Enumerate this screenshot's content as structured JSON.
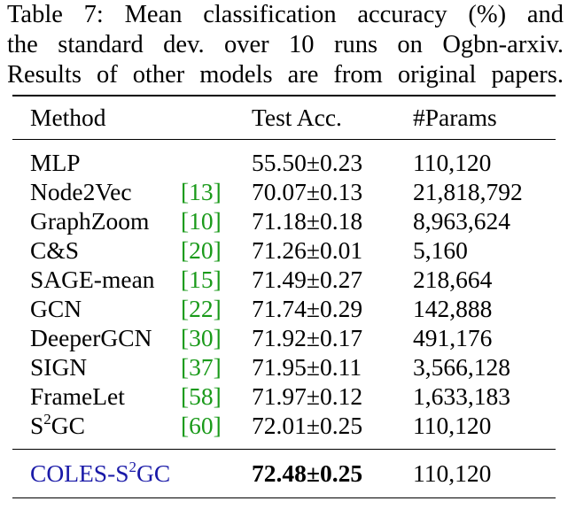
{
  "caption": {
    "line1": "Table 7: Mean classification accuracy (%) and",
    "line2": "the standard dev.  over 10 runs on Ogbn-arxiv.",
    "line3": "Results of other models are from original papers."
  },
  "header": {
    "method": "Method",
    "acc": "Test Acc.",
    "params": "#Params"
  },
  "rows": [
    {
      "method": "MLP",
      "ref": "",
      "acc": "55.50±0.23",
      "params": "110,120"
    },
    {
      "method": "Node2Vec",
      "ref": "[13]",
      "acc": "70.07±0.13",
      "params": "21,818,792"
    },
    {
      "method": "GraphZoom",
      "ref": "[10]",
      "acc": "71.18±0.18",
      "params": "8,963,624"
    },
    {
      "method": "C&S",
      "ref": "[20]",
      "acc": "71.26±0.01",
      "params": "5,160"
    },
    {
      "method": "SAGE-mean",
      "ref": "[15]",
      "acc": "71.49±0.27",
      "params": "218,664"
    },
    {
      "method": "GCN",
      "ref": "[22]",
      "acc": "71.74±0.29",
      "params": "142,888"
    },
    {
      "method": "DeeperGCN",
      "ref": "[30]",
      "acc": "71.92±0.17",
      "params": "491,176"
    },
    {
      "method": "SIGN",
      "ref": "[37]",
      "acc": "71.95±0.11",
      "params": "3,566,128"
    },
    {
      "method": "FrameLet",
      "ref": "[58]",
      "acc": "71.97±0.12",
      "params": "1,633,183"
    },
    {
      "method_pre": "S",
      "method_sup": "2",
      "method_post": "GC",
      "ref": "[60]",
      "acc": "72.01±0.25",
      "params": "110,120"
    }
  ],
  "final": {
    "method_pre": "COLES-S",
    "method_sup": "2",
    "method_post": "GC",
    "acc": "72.48±0.25",
    "params": "110,120"
  },
  "colors": {
    "citation": "#1a9a1a",
    "highlight_method": "#1a1aa8"
  }
}
